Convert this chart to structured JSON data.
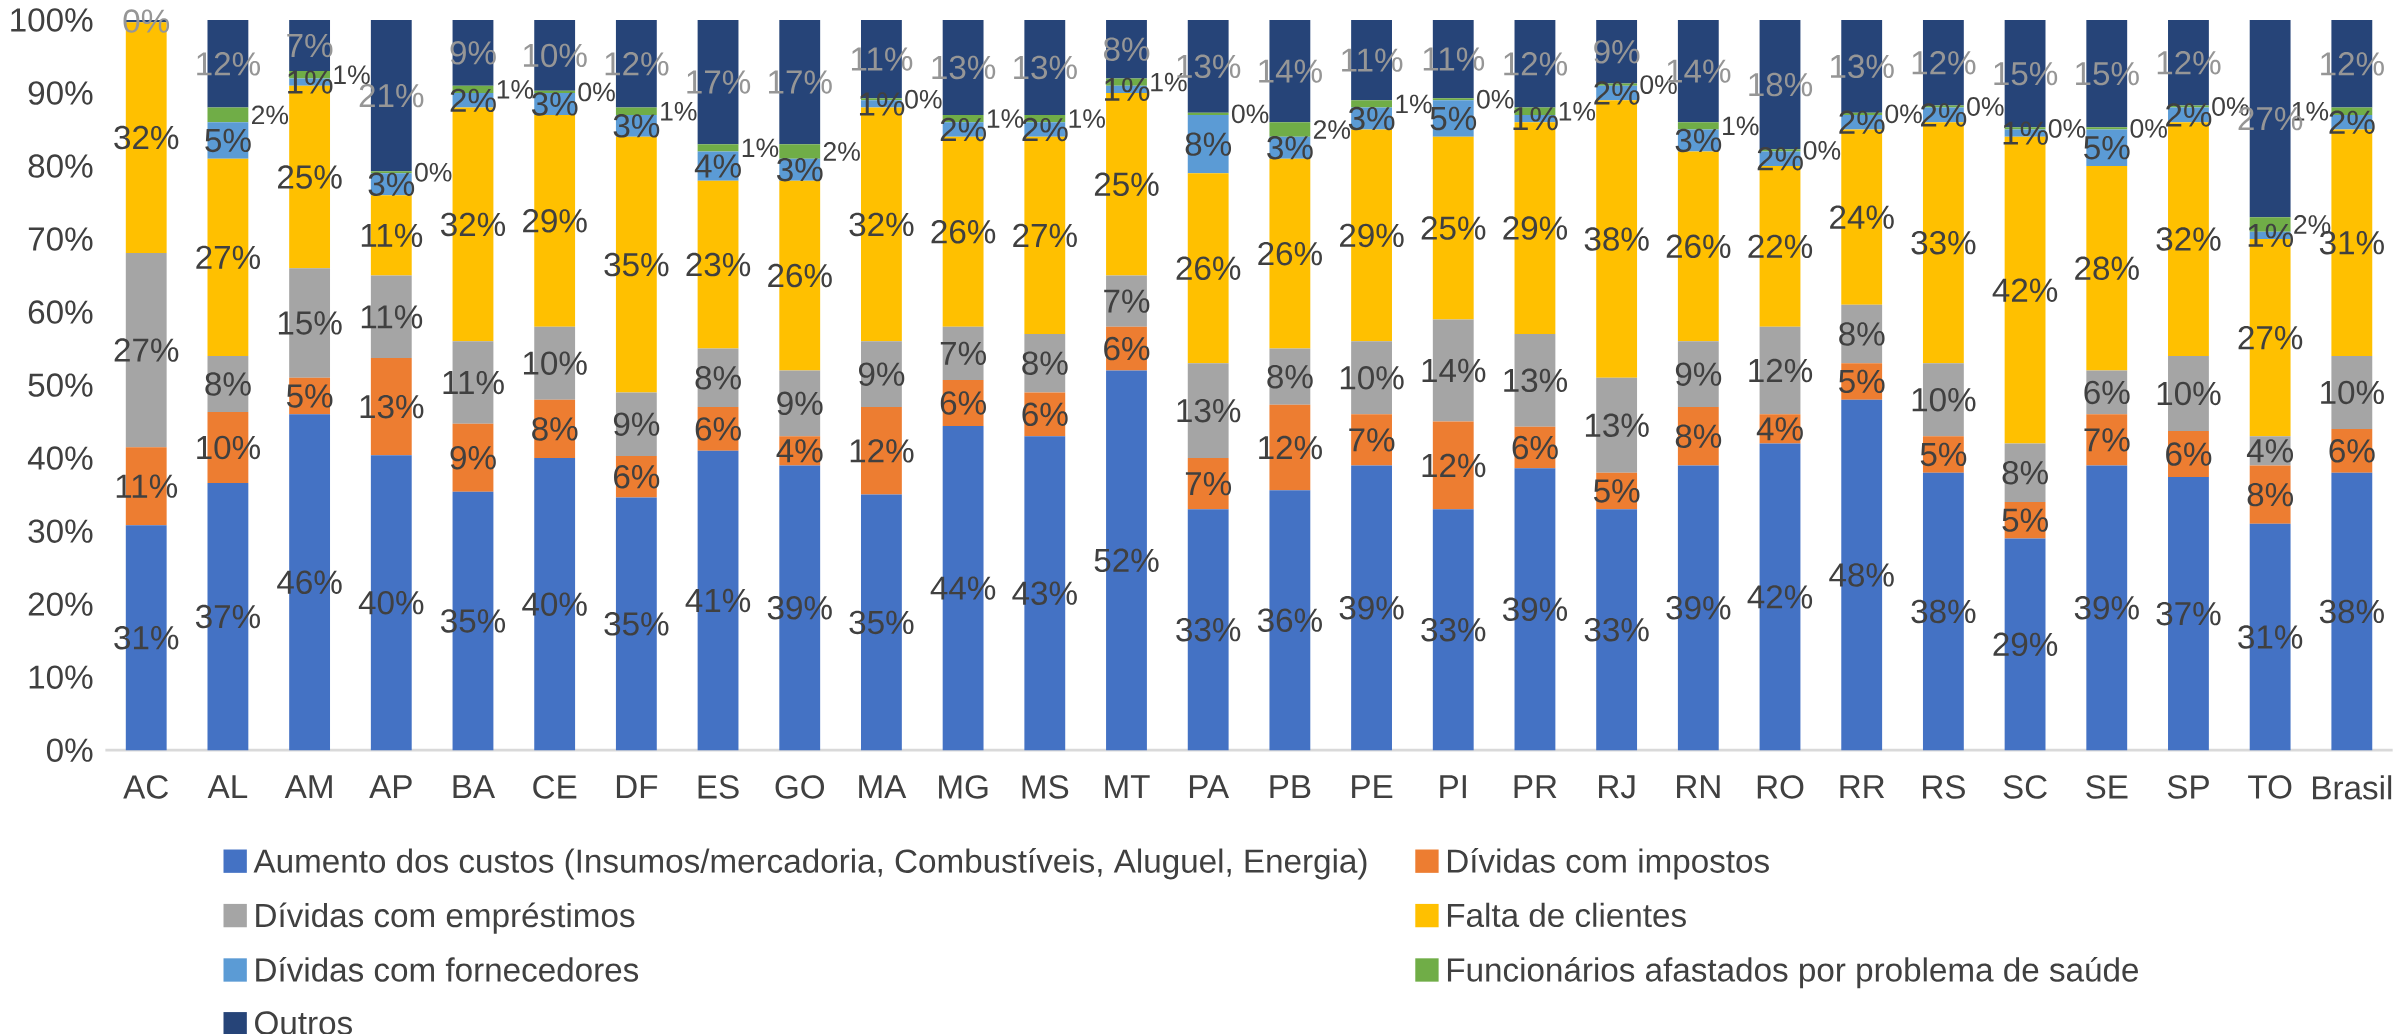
{
  "chart_data": {
    "type": "bar",
    "stacked": true,
    "categories": [
      "AC",
      "AL",
      "AM",
      "AP",
      "BA",
      "CE",
      "DF",
      "ES",
      "GO",
      "MA",
      "MG",
      "MS",
      "MT",
      "PA",
      "PB",
      "PE",
      "PI",
      "PR",
      "RJ",
      "RN",
      "RO",
      "RR",
      "RS",
      "SC",
      "SE",
      "SP",
      "TO",
      "Brasil"
    ],
    "ylim": [
      0,
      100
    ],
    "yticks": [
      {
        "value": 0,
        "label": "0%"
      },
      {
        "value": 10,
        "label": "10%"
      },
      {
        "value": 20,
        "label": "20%"
      },
      {
        "value": 30,
        "label": "30%"
      },
      {
        "value": 40,
        "label": "40%"
      },
      {
        "value": 50,
        "label": "50%"
      },
      {
        "value": 60,
        "label": "60%"
      },
      {
        "value": 70,
        "label": "70%"
      },
      {
        "value": 80,
        "label": "80%"
      },
      {
        "value": 90,
        "label": "90%"
      },
      {
        "value": 100,
        "label": "100%"
      }
    ],
    "legend": "bottom",
    "series": [
      {
        "name": "Aumento dos custos (Insumos/mercadoria, Combustíveis, Aluguel, Energia)",
        "color": "#4472c4",
        "values": [
          30.8,
          36.6,
          46,
          40.4,
          35.4,
          40,
          34.6,
          41,
          39,
          35,
          44.4,
          43,
          52,
          33,
          35.6,
          39,
          33,
          38.6,
          33,
          39,
          42,
          48,
          38,
          29,
          39,
          37.4,
          31,
          38
        ],
        "value_labels": [
          "31%",
          "37%",
          "46%",
          "40%",
          "35%",
          "40%",
          "35%",
          "41%",
          "39%",
          "35%",
          "44%",
          "43%",
          "52%",
          "33%",
          "36%",
          "39%",
          "33%",
          "39%",
          "33%",
          "39%",
          "42%",
          "48%",
          "38%",
          "29%",
          "39%",
          "37%",
          "31%",
          "38%"
        ]
      },
      {
        "name": "Dívidas com impostos",
        "color": "#ed7d31",
        "values": [
          10.7,
          9.7,
          5,
          13.3,
          9.3,
          8,
          5.7,
          6,
          4,
          12,
          6.3,
          6,
          6,
          7,
          11.7,
          7,
          12,
          5.7,
          5,
          8,
          4,
          5,
          5,
          5,
          7,
          6.3,
          8,
          6
        ],
        "value_labels": [
          "11%",
          "10%",
          "5%",
          "13%",
          "9%",
          "8%",
          "6%",
          "6%",
          "4%",
          "12%",
          "6%",
          "6%",
          "6%",
          "7%",
          "12%",
          "7%",
          "12%",
          "6%",
          "5%",
          "8%",
          "4%",
          "5%",
          "5%",
          "5%",
          "7%",
          "6%",
          "8%",
          "6%"
        ]
      },
      {
        "name": "Dívidas com empréstimos",
        "color": "#a5a5a5",
        "values": [
          26.6,
          7.7,
          15,
          11.3,
          11.3,
          10,
          8.7,
          8,
          9,
          9,
          7.3,
          8,
          7,
          13,
          7.7,
          10,
          14,
          12.7,
          13,
          9,
          12,
          8,
          10,
          8,
          6,
          10.3,
          4,
          10
        ],
        "value_labels": [
          "27%",
          "8%",
          "15%",
          "11%",
          "11%",
          "10%",
          "9%",
          "8%",
          "9%",
          "9%",
          "7%",
          "8%",
          "7%",
          "13%",
          "8%",
          "10%",
          "14%",
          "13%",
          "13%",
          "9%",
          "12%",
          "8%",
          "10%",
          "8%",
          "6%",
          "10%",
          "4%",
          "10%"
        ]
      },
      {
        "name": "Falta de clientes",
        "color": "#ffc000",
        "values": [
          31.6,
          27,
          25,
          11,
          32,
          29,
          35,
          23,
          26,
          32,
          26,
          27,
          25,
          26,
          26,
          29,
          25,
          29,
          38,
          26,
          22,
          24,
          33,
          42,
          28,
          32,
          27,
          31
        ],
        "value_labels": [
          "32%",
          "27%",
          "25%",
          "11%",
          "32%",
          "29%",
          "35%",
          "23%",
          "26%",
          "32%",
          "26%",
          "27%",
          "25%",
          "26%",
          "26%",
          "29%",
          "25%",
          "29%",
          "38%",
          "26%",
          "22%",
          "24%",
          "33%",
          "42%",
          "28%",
          "32%",
          "27%",
          "31%"
        ]
      },
      {
        "name": "Dívidas com fornecedores",
        "color": "#5b9bd5",
        "values": [
          0,
          5,
          1,
          3,
          2,
          3,
          3,
          4,
          3,
          1,
          2,
          2,
          1,
          8,
          3,
          3,
          5,
          1,
          2,
          3,
          2,
          2,
          2,
          1,
          5,
          2,
          1,
          2
        ],
        "value_labels": [
          null,
          "5%",
          "1%",
          "3%",
          "2%",
          "3%",
          "3%",
          "4%",
          "3%",
          "1%",
          "2%",
          "2%",
          "1%",
          "8%",
          "3%",
          "3%",
          "5%",
          "1%",
          "2%",
          "3%",
          "2%",
          "2%",
          "2%",
          "1%",
          "5%",
          "2%",
          "1%",
          "2%"
        ]
      },
      {
        "name": "Funcionários afastados por problema de saúde",
        "color": "#70ad47",
        "values": [
          0,
          2,
          1,
          0.3,
          1,
          0.3,
          1,
          1,
          2,
          0.3,
          1,
          1,
          1,
          0.3,
          2,
          1,
          0.3,
          1,
          0.3,
          1,
          0.3,
          0.3,
          0.3,
          0.3,
          0.3,
          0.3,
          2,
          1
        ],
        "value_labels": [
          null,
          "2%",
          "1%",
          "0%",
          "1%",
          "0%",
          "1%",
          "1%",
          "2%",
          "0%",
          "1%",
          "1%",
          "1%",
          "0%",
          "2%",
          "1%",
          "0%",
          "1%",
          "0%",
          "1%",
          "0%",
          "0%",
          "0%",
          "0%",
          "0%",
          "0%",
          "2%",
          "1%"
        ]
      },
      {
        "name": "Outros",
        "color": "#264478",
        "values": [
          0.3,
          12,
          7,
          20.7,
          9,
          9.7,
          12,
          17,
          17,
          10.7,
          13,
          13,
          8,
          12.7,
          14,
          11,
          10.7,
          12,
          8.7,
          14,
          17.7,
          12.7,
          11.7,
          14.7,
          14.7,
          11.7,
          27,
          12
        ],
        "value_labels": [
          "0%",
          "12%",
          "7%",
          "21%",
          "9%",
          "10%",
          "12%",
          "17%",
          "17%",
          "11%",
          "13%",
          "13%",
          "8%",
          "13%",
          "14%",
          "11%",
          "11%",
          "12%",
          "9%",
          "14%",
          "18%",
          "13%",
          "12%",
          "15%",
          "15%",
          "12%",
          "27%",
          "12%"
        ]
      }
    ]
  }
}
